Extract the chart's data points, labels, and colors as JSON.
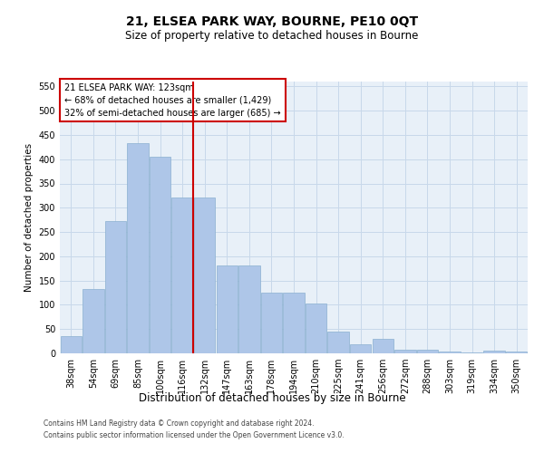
{
  "title": "21, ELSEA PARK WAY, BOURNE, PE10 0QT",
  "subtitle": "Size of property relative to detached houses in Bourne",
  "xlabel": "Distribution of detached houses by size in Bourne",
  "ylabel": "Number of detached properties",
  "footer1": "Contains HM Land Registry data © Crown copyright and database right 2024.",
  "footer2": "Contains public sector information licensed under the Open Government Licence v3.0.",
  "annotation_title": "21 ELSEA PARK WAY: 123sqm",
  "annotation_line1": "← 68% of detached houses are smaller (1,429)",
  "annotation_line2": "32% of semi-detached houses are larger (685) →",
  "bar_color": "#aec6e8",
  "bar_edge_color": "#8ab0d0",
  "vline_color": "#cc0000",
  "annotation_box_color": "#cc0000",
  "grid_color": "#c8d8ea",
  "bg_color": "#e8f0f8",
  "categories": [
    "38sqm",
    "54sqm",
    "69sqm",
    "85sqm",
    "100sqm",
    "116sqm",
    "132sqm",
    "147sqm",
    "163sqm",
    "178sqm",
    "194sqm",
    "210sqm",
    "225sqm",
    "241sqm",
    "256sqm",
    "272sqm",
    "288sqm",
    "303sqm",
    "319sqm",
    "334sqm",
    "350sqm"
  ],
  "values": [
    35,
    133,
    272,
    433,
    406,
    322,
    322,
    181,
    181,
    125,
    125,
    103,
    45,
    18,
    30,
    7,
    7,
    3,
    2,
    5,
    3
  ],
  "vline_x": 5.5,
  "ylim": [
    0,
    560
  ],
  "yticks": [
    0,
    50,
    100,
    150,
    200,
    250,
    300,
    350,
    400,
    450,
    500,
    550
  ],
  "title_fontsize": 10,
  "subtitle_fontsize": 8.5,
  "ylabel_fontsize": 7.5,
  "xlabel_fontsize": 8.5,
  "tick_fontsize": 7,
  "annotation_fontsize": 7,
  "footer_fontsize": 5.5
}
